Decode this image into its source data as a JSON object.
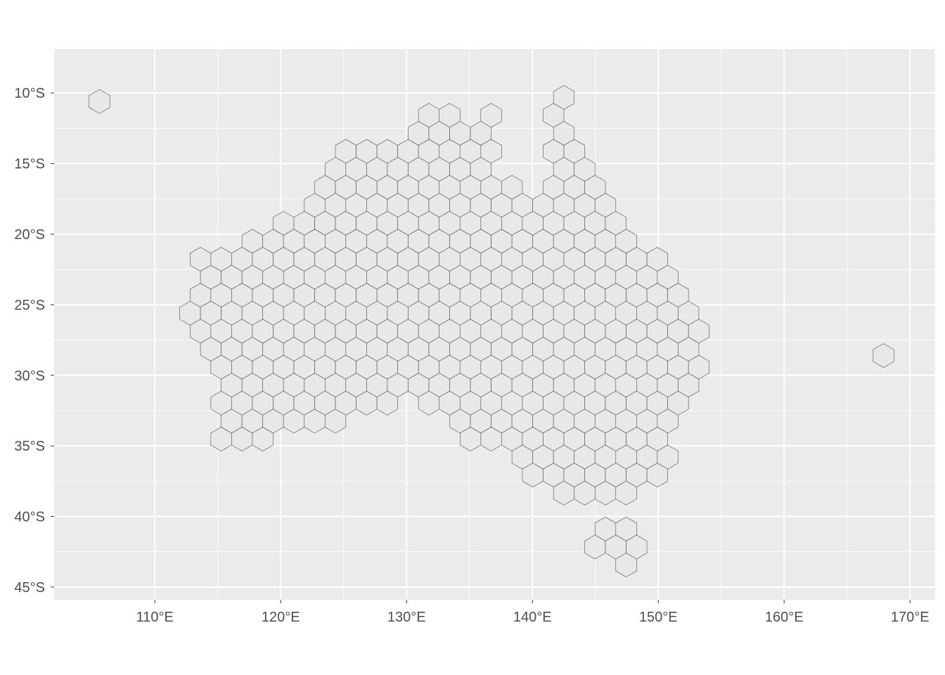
{
  "map": {
    "projection": "lon-lat",
    "xlim": [
      102,
      172
    ],
    "ylim": [
      -45.9,
      -6.9
    ],
    "background": "#ebebeb",
    "grid_color": "#ffffff",
    "hex_fill": "#e8e8e8",
    "hex_stroke": "#4d4d4d",
    "hex_spacing_deg": 1.65,
    "x_ticks": [
      {
        "value": 110,
        "label": "110°E"
      },
      {
        "value": 120,
        "label": "120°E"
      },
      {
        "value": 130,
        "label": "130°E"
      },
      {
        "value": 140,
        "label": "140°E"
      },
      {
        "value": 150,
        "label": "150°E"
      },
      {
        "value": 160,
        "label": "160°E"
      },
      {
        "value": 170,
        "label": "170°E"
      }
    ],
    "y_ticks": [
      {
        "value": -10,
        "label": "10°S"
      },
      {
        "value": -15,
        "label": "15°S"
      },
      {
        "value": -20,
        "label": "20°S"
      },
      {
        "value": -25,
        "label": "25°S"
      },
      {
        "value": -30,
        "label": "30°S"
      },
      {
        "value": -35,
        "label": "35°S"
      },
      {
        "value": -40,
        "label": "40°S"
      },
      {
        "value": -45,
        "label": "45°S"
      }
    ],
    "region_polygon_lonlat": [
      [
        113.0,
        -21.7
      ],
      [
        114.8,
        -21.5
      ],
      [
        116.5,
        -20.3
      ],
      [
        119.5,
        -19.8
      ],
      [
        121.5,
        -18.0
      ],
      [
        122.5,
        -16.8
      ],
      [
        124.5,
        -14.5
      ],
      [
        126.0,
        -13.4
      ],
      [
        128.0,
        -14.5
      ],
      [
        130.0,
        -12.8
      ],
      [
        130.3,
        -11.3
      ],
      [
        132.5,
        -10.8
      ],
      [
        134.5,
        -11.5
      ],
      [
        135.8,
        -11.8
      ],
      [
        136.5,
        -11.0
      ],
      [
        136.8,
        -10.3
      ],
      [
        137.2,
        -11.5
      ],
      [
        137.2,
        -15.5
      ],
      [
        140.0,
        -17.3
      ],
      [
        141.1,
        -16.6
      ],
      [
        141.3,
        -13.0
      ],
      [
        141.8,
        -11.0
      ],
      [
        142.4,
        -9.8
      ],
      [
        142.9,
        -8.9
      ],
      [
        143.3,
        -10.3
      ],
      [
        143.0,
        -12.0
      ],
      [
        144.0,
        -13.5
      ],
      [
        145.3,
        -14.5
      ],
      [
        145.8,
        -16.0
      ],
      [
        146.4,
        -18.0
      ],
      [
        148.0,
        -20.0
      ],
      [
        149.5,
        -20.8
      ],
      [
        150.8,
        -22.1
      ],
      [
        152.2,
        -24.0
      ],
      [
        153.3,
        -25.0
      ],
      [
        153.6,
        -26.0
      ],
      [
        153.6,
        -28.0
      ],
      [
        154.3,
        -28.6
      ],
      [
        153.4,
        -29.0
      ],
      [
        153.4,
        -31.2
      ],
      [
        152.6,
        -32.3
      ],
      [
        151.6,
        -34.0
      ],
      [
        151.0,
        -35.5
      ],
      [
        150.5,
        -37.6
      ],
      [
        149.5,
        -37.6
      ],
      [
        148.2,
        -38.1
      ],
      [
        146.5,
        -39.2
      ],
      [
        145.0,
        -38.5
      ],
      [
        143.5,
        -38.8
      ],
      [
        142.0,
        -38.5
      ],
      [
        140.0,
        -38.0
      ],
      [
        139.2,
        -37.0
      ],
      [
        138.0,
        -35.8
      ],
      [
        136.5,
        -35.7
      ],
      [
        135.0,
        -35.2
      ],
      [
        134.0,
        -33.5
      ],
      [
        132.0,
        -32.2
      ],
      [
        130.5,
        -31.6
      ],
      [
        129.0,
        -32.0
      ],
      [
        127.0,
        -32.5
      ],
      [
        125.0,
        -33.7
      ],
      [
        123.5,
        -34.0
      ],
      [
        121.5,
        -34.0
      ],
      [
        120.0,
        -34.3
      ],
      [
        118.5,
        -35.2
      ],
      [
        116.7,
        -35.2
      ],
      [
        115.0,
        -34.4
      ],
      [
        114.8,
        -32.5
      ],
      [
        114.9,
        -31.3
      ],
      [
        113.7,
        -29.0
      ],
      [
        113.2,
        -27.0
      ],
      [
        112.5,
        -25.6
      ],
      [
        113.0,
        -24.0
      ],
      [
        113.0,
        -21.7
      ]
    ],
    "tasmania_polygon_lonlat": [
      [
        144.5,
        -40.3
      ],
      [
        146.5,
        -41.0
      ],
      [
        148.3,
        -40.0
      ],
      [
        149.0,
        -40.8
      ],
      [
        148.6,
        -42.2
      ],
      [
        147.8,
        -43.5
      ],
      [
        147.0,
        -44.0
      ],
      [
        146.0,
        -43.3
      ],
      [
        145.0,
        -42.5
      ],
      [
        144.5,
        -41.0
      ],
      [
        144.5,
        -40.3
      ]
    ],
    "isolated_cells_lonlat": [
      {
        "lon": 105.6,
        "lat": -10.6
      },
      {
        "lon": 167.9,
        "lat": -28.6
      }
    ]
  }
}
